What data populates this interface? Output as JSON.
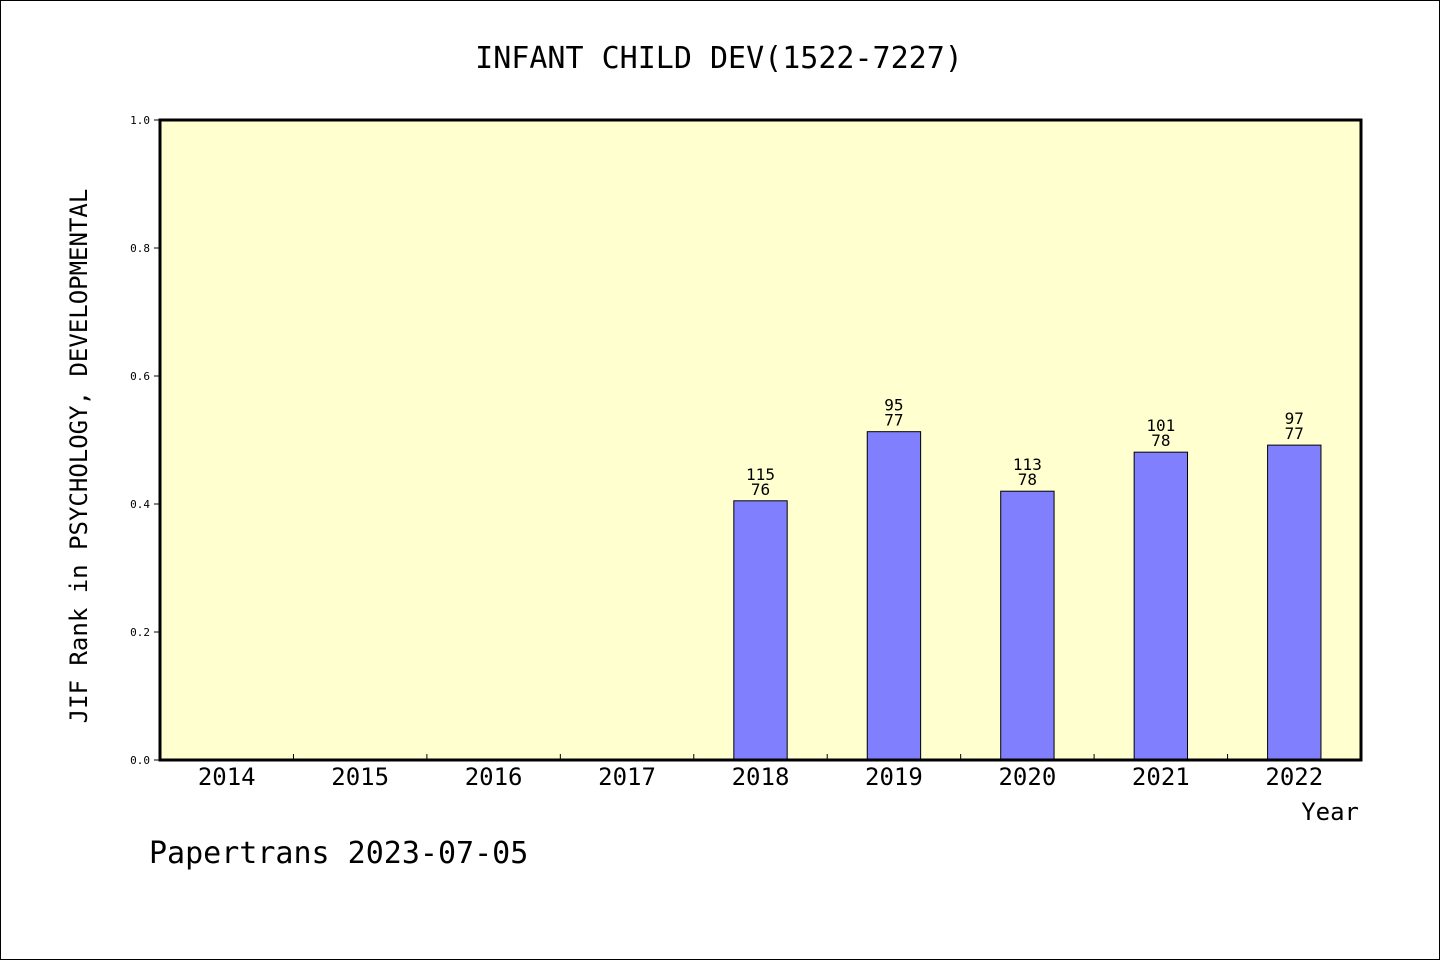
{
  "chart_data": {
    "type": "bar",
    "title": "INFANT CHILD DEV(1522-7227)",
    "xlabel": "Year",
    "ylabel": "JIF Rank in PSYCHOLOGY, DEVELOPMENTAL",
    "categories": [
      "2014",
      "2015",
      "2016",
      "2017",
      "2018",
      "2019",
      "2020",
      "2021",
      "2022"
    ],
    "values": [
      null,
      null,
      null,
      null,
      0.405,
      0.513,
      0.42,
      0.481,
      0.492
    ],
    "bar_labels": [
      {
        "top": "",
        "bottom": ""
      },
      {
        "top": "",
        "bottom": ""
      },
      {
        "top": "",
        "bottom": ""
      },
      {
        "top": "",
        "bottom": ""
      },
      {
        "top": "115",
        "bottom": "76"
      },
      {
        "top": "95",
        "bottom": "77"
      },
      {
        "top": "113",
        "bottom": "78"
      },
      {
        "top": "101",
        "bottom": "78"
      },
      {
        "top": "97",
        "bottom": "77"
      }
    ],
    "ylim": [
      0,
      1.0
    ],
    "yticks": [
      "0.0",
      "0.2",
      "0.4",
      "0.6",
      "0.8",
      "1.0"
    ],
    "grid": false,
    "colors": {
      "plot_background": "#ffffd0",
      "bar_fill": "#8080ff",
      "bar_stroke": "#000000",
      "axis": "#000000"
    }
  },
  "footer": {
    "credit": "Papertrans 2023-07-05"
  }
}
